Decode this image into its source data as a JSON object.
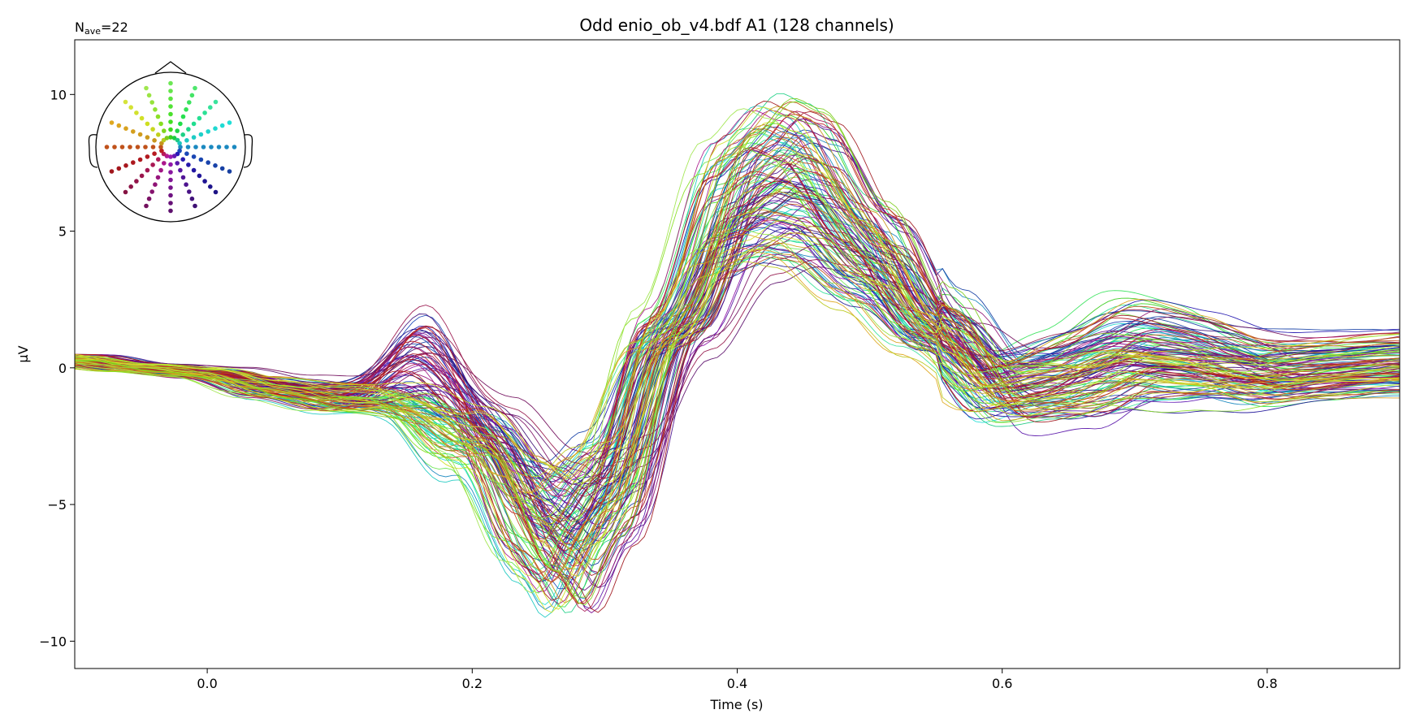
{
  "chart_data": {
    "type": "line",
    "title": "Odd enio_ob_v4.bdf A1 (128 channels)",
    "annotation": {
      "prefix": "N",
      "subscript": "ave",
      "suffix": "=22"
    },
    "xlabel": "Time (s)",
    "ylabel": "μV",
    "xlim": [
      -0.1,
      0.9
    ],
    "ylim": [
      -11,
      12
    ],
    "xticks": [
      0.0,
      0.2,
      0.4,
      0.6,
      0.8
    ],
    "xtick_labels": [
      "0.0",
      "0.2",
      "0.4",
      "0.6",
      "0.8"
    ],
    "yticks": [
      10,
      5,
      0,
      -5,
      -10
    ],
    "ytick_labels": [
      "10",
      "5",
      "0",
      "−5",
      "−10"
    ],
    "n_channels": 128,
    "legend": "sensor-position head inset, top-left",
    "reference_waveform": {
      "description": "approximate grand shape of the butterfly traces (μV)",
      "x": [
        -0.1,
        -0.05,
        0.0,
        0.05,
        0.1,
        0.15,
        0.2,
        0.25,
        0.27,
        0.3,
        0.35,
        0.4,
        0.43,
        0.45,
        0.5,
        0.55,
        0.6,
        0.65,
        0.7,
        0.75,
        0.8,
        0.85,
        0.9
      ],
      "y": [
        0.3,
        0.0,
        -0.2,
        -0.8,
        -1.2,
        -1.0,
        -2.5,
        -6.0,
        -7.0,
        -5.0,
        1.5,
        6.5,
        7.5,
        7.2,
        4.5,
        1.5,
        -0.8,
        -0.3,
        0.6,
        0.3,
        -0.2,
        0.0,
        0.2
      ]
    },
    "colors": {
      "frontal": "#7fe05a",
      "left": "#0a8a6a",
      "right": "#f07a5a",
      "occipital": "#8a0030",
      "central": "#8a60e0",
      "axis": "#000000"
    }
  }
}
